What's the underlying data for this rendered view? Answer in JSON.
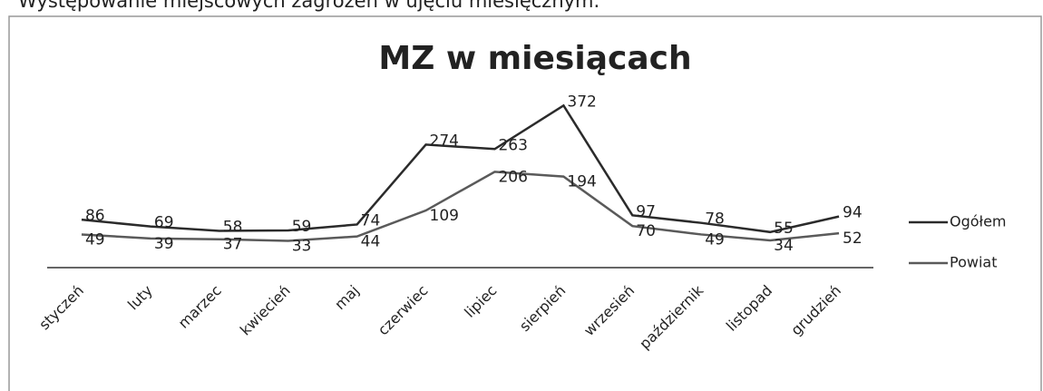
{
  "header": {
    "title": "Występowanie miejscowych zagrożeń w ujęciu miesięcznym."
  },
  "chart_data": {
    "type": "line",
    "title": "MZ w miesiącach",
    "categories": [
      "styczeń",
      "luty",
      "marzec",
      "kwiecień",
      "maj",
      "czerwiec",
      "lipiec",
      "sierpień",
      "wrzesień",
      "październik",
      "listopad",
      "grudzień"
    ],
    "series": [
      {
        "name": "Ogółem",
        "color": "#2b2b2b",
        "values": [
          86,
          69,
          58,
          59,
          74,
          274,
          263,
          372,
          97,
          78,
          55,
          94
        ]
      },
      {
        "name": "Powiat",
        "color": "#5a5a5a",
        "values": [
          49,
          39,
          37,
          33,
          44,
          109,
          206,
          194,
          70,
          49,
          34,
          52
        ]
      }
    ],
    "legend": "right"
  }
}
